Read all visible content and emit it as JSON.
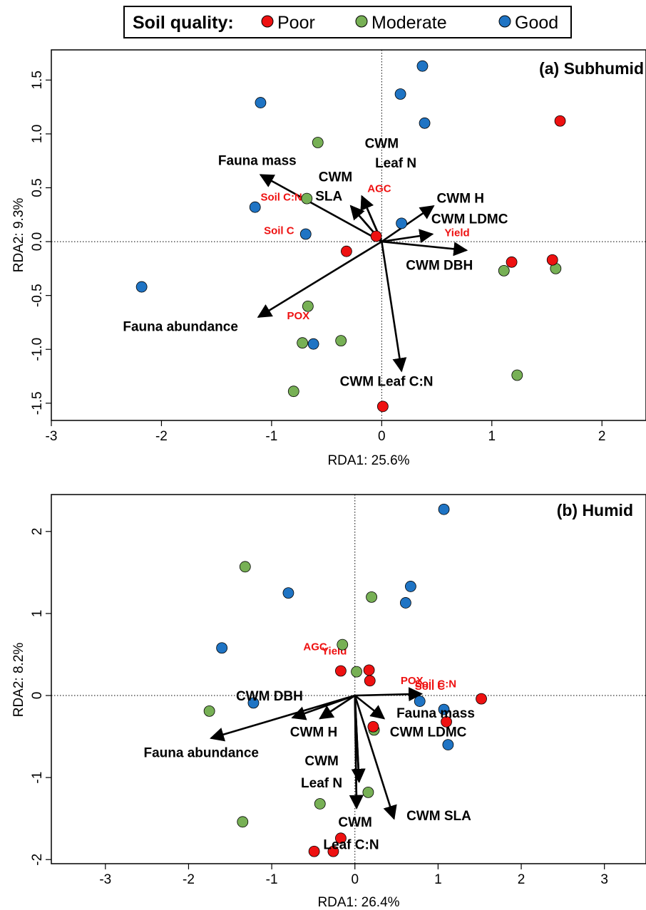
{
  "legend": {
    "title": "Soil quality:",
    "items": [
      {
        "label": "Poor",
        "color": "#ee1111"
      },
      {
        "label": "Moderate",
        "color": "#77b055"
      },
      {
        "label": "Good",
        "color": "#1f74c4"
      }
    ]
  },
  "colors": {
    "label_red": "#ee1111",
    "axis": "#000000"
  },
  "chart_data": [
    {
      "type": "scatter",
      "title": "(a) Subhumid",
      "xlabel": "RDA1: 25.6%",
      "ylabel": "RDA2: 9.3%",
      "xlim": [
        -3.0,
        2.4
      ],
      "ylim": [
        -1.66,
        1.78
      ],
      "xticks": [
        -3,
        -2,
        -1,
        0,
        1,
        2
      ],
      "yticks": [
        -1.5,
        -1.0,
        -0.5,
        0.0,
        0.5,
        1.0,
        1.5
      ],
      "yticklabels": [
        "-1.5",
        "-1.0",
        "-0.5",
        "0.0",
        "0.5",
        "1.0",
        "1.5"
      ],
      "points": [
        {
          "x": 0.37,
          "y": 1.63,
          "q": "Good"
        },
        {
          "x": 0.17,
          "y": 1.37,
          "q": "Good"
        },
        {
          "x": 0.39,
          "y": 1.1,
          "q": "Good"
        },
        {
          "x": -1.1,
          "y": 1.29,
          "q": "Good"
        },
        {
          "x": -1.15,
          "y": 0.32,
          "q": "Good"
        },
        {
          "x": -0.69,
          "y": 0.07,
          "q": "Good"
        },
        {
          "x": 0.18,
          "y": 0.17,
          "q": "Good"
        },
        {
          "x": -2.18,
          "y": -0.42,
          "q": "Good"
        },
        {
          "x": -0.62,
          "y": -0.95,
          "q": "Good"
        },
        {
          "x": -0.58,
          "y": 0.92,
          "q": "Moderate"
        },
        {
          "x": -0.68,
          "y": 0.4,
          "q": "Moderate"
        },
        {
          "x": -0.67,
          "y": -0.6,
          "q": "Moderate"
        },
        {
          "x": -0.72,
          "y": -0.94,
          "q": "Moderate"
        },
        {
          "x": -0.37,
          "y": -0.92,
          "q": "Moderate"
        },
        {
          "x": -0.8,
          "y": -1.39,
          "q": "Moderate"
        },
        {
          "x": 1.11,
          "y": -0.27,
          "q": "Moderate"
        },
        {
          "x": 1.58,
          "y": -0.25,
          "q": "Moderate"
        },
        {
          "x": 1.23,
          "y": -1.24,
          "q": "Moderate"
        },
        {
          "x": 1.62,
          "y": 1.12,
          "q": "Poor"
        },
        {
          "x": -0.05,
          "y": 0.05,
          "q": "Poor"
        },
        {
          "x": -0.32,
          "y": -0.09,
          "q": "Poor"
        },
        {
          "x": 1.18,
          "y": -0.19,
          "q": "Poor"
        },
        {
          "x": 1.55,
          "y": -0.17,
          "q": "Poor"
        },
        {
          "x": 0.01,
          "y": -1.53,
          "q": "Poor"
        }
      ],
      "arrows": [
        {
          "label": "Fauna mass",
          "x": -1.1,
          "y": 0.62,
          "lx": -1.13,
          "ly": 0.71,
          "anchor": "middle"
        },
        {
          "label": "CWM",
          "x": -0.28,
          "y": 0.33,
          "lx": -0.42,
          "ly": 0.56,
          "anchor": "middle"
        },
        {
          "label": "SLA",
          "x": -0.28,
          "y": 0.33,
          "lx": -0.48,
          "ly": 0.38,
          "anchor": "middle"
        },
        {
          "label": "CWM",
          "x": -0.18,
          "y": 0.42,
          "lx": 0.0,
          "ly": 0.87,
          "anchor": "middle"
        },
        {
          "label": "Leaf N",
          "x": -0.18,
          "y": 0.42,
          "lx": -0.06,
          "ly": 0.69,
          "anchor": "start"
        },
        {
          "label": "CWM H",
          "x": 0.47,
          "y": 0.33,
          "lx": 0.5,
          "ly": 0.36,
          "anchor": "start"
        },
        {
          "label": "CWM LDMC",
          "x": 0.46,
          "y": 0.07,
          "lx": 0.45,
          "ly": 0.17,
          "anchor": "start"
        },
        {
          "label": "CWM DBH",
          "x": 0.77,
          "y": -0.08,
          "lx": 0.22,
          "ly": -0.26,
          "anchor": "start"
        },
        {
          "label": "Fauna abundance",
          "x": -1.12,
          "y": -0.7,
          "lx": -2.35,
          "ly": -0.83,
          "anchor": "start"
        },
        {
          "label": "CWM Leaf C:N",
          "x": 0.18,
          "y": -1.2,
          "lx": -0.38,
          "ly": -1.34,
          "anchor": "start"
        }
      ],
      "env": [
        {
          "label": "Soil C:N",
          "lx": -1.1,
          "ly": 0.38
        },
        {
          "label": "Soil C",
          "lx": -1.07,
          "ly": 0.07
        },
        {
          "label": "AGC",
          "lx": -0.13,
          "ly": 0.46
        },
        {
          "label": "Yield",
          "lx": 0.57,
          "ly": 0.05
        },
        {
          "label": "POX",
          "lx": -0.86,
          "ly": -0.72
        }
      ]
    },
    {
      "type": "scatter",
      "title": "(b) Humid",
      "xlabel": "RDA1: 26.4%",
      "ylabel": "RDA2: 8.2%",
      "xlim": [
        -3.65,
        3.5
      ],
      "ylim": [
        -2.05,
        2.45
      ],
      "xticks": [
        -3,
        -2,
        -1,
        0,
        1,
        2,
        3
      ],
      "yticks": [
        -2,
        -1,
        0,
        1,
        2
      ],
      "yticklabels": [
        "-2",
        "-1",
        "0",
        "1",
        "2"
      ],
      "points": [
        {
          "x": 1.07,
          "y": 2.27,
          "q": "Good"
        },
        {
          "x": 0.67,
          "y": 1.33,
          "q": "Good"
        },
        {
          "x": 0.61,
          "y": 1.13,
          "q": "Good"
        },
        {
          "x": -0.8,
          "y": 1.25,
          "q": "Good"
        },
        {
          "x": -1.6,
          "y": 0.58,
          "q": "Good"
        },
        {
          "x": -1.22,
          "y": -0.09,
          "q": "Good"
        },
        {
          "x": 0.78,
          "y": -0.07,
          "q": "Good"
        },
        {
          "x": 1.07,
          "y": -0.17,
          "q": "Good"
        },
        {
          "x": 1.12,
          "y": -0.6,
          "q": "Good"
        },
        {
          "x": -1.32,
          "y": 1.57,
          "q": "Moderate"
        },
        {
          "x": 0.2,
          "y": 1.2,
          "q": "Moderate"
        },
        {
          "x": -0.15,
          "y": 0.62,
          "q": "Moderate"
        },
        {
          "x": 0.02,
          "y": 0.29,
          "q": "Moderate"
        },
        {
          "x": -1.75,
          "y": -0.19,
          "q": "Moderate"
        },
        {
          "x": 0.23,
          "y": -0.42,
          "q": "Moderate"
        },
        {
          "x": 0.16,
          "y": -1.18,
          "q": "Moderate"
        },
        {
          "x": -0.42,
          "y": -1.32,
          "q": "Moderate"
        },
        {
          "x": -1.35,
          "y": -1.54,
          "q": "Moderate"
        },
        {
          "x": -0.17,
          "y": 0.3,
          "q": "Poor"
        },
        {
          "x": 0.17,
          "y": 0.31,
          "q": "Poor"
        },
        {
          "x": 0.18,
          "y": 0.18,
          "q": "Poor"
        },
        {
          "x": 1.52,
          "y": -0.04,
          "q": "Poor"
        },
        {
          "x": 1.1,
          "y": -0.32,
          "q": "Poor"
        },
        {
          "x": 0.22,
          "y": -0.38,
          "q": "Poor"
        },
        {
          "x": -0.17,
          "y": -1.74,
          "q": "Poor"
        },
        {
          "x": -0.49,
          "y": -1.9,
          "q": "Poor"
        },
        {
          "x": -0.26,
          "y": -1.9,
          "q": "Poor"
        }
      ],
      "arrows": [
        {
          "label": "CWM DBH",
          "x": -0.75,
          "y": -0.27,
          "lx": -1.43,
          "ly": -0.06,
          "anchor": "start"
        },
        {
          "label": "CWM H",
          "x": -0.42,
          "y": -0.28,
          "lx": -0.78,
          "ly": -0.5,
          "anchor": "start"
        },
        {
          "label": "Fauna abundance",
          "x": -1.73,
          "y": -0.52,
          "lx": -2.54,
          "ly": -0.75,
          "anchor": "start"
        },
        {
          "label": "Fauna mass",
          "x": 0.8,
          "y": 0.02,
          "lx": 0.5,
          "ly": -0.27,
          "anchor": "start"
        },
        {
          "label": "CWM LDMC",
          "x": 0.35,
          "y": -0.28,
          "lx": 0.42,
          "ly": -0.5,
          "anchor": "start"
        },
        {
          "label": "CWM",
          "x": 0.05,
          "y": -1.05,
          "lx": -0.4,
          "ly": -0.85,
          "anchor": "middle"
        },
        {
          "label": "Leaf N",
          "x": 0.05,
          "y": -1.05,
          "lx": -0.4,
          "ly": -1.12,
          "anchor": "middle"
        },
        {
          "label": "CWM SLA",
          "x": 0.47,
          "y": -1.5,
          "lx": 0.62,
          "ly": -1.52,
          "anchor": "start"
        },
        {
          "label": "CWM",
          "x": 0.02,
          "y": -1.37,
          "lx": -0.2,
          "ly": -1.6,
          "anchor": "start"
        },
        {
          "label": "Leaf C:N",
          "x": 0.02,
          "y": -1.37,
          "lx": -0.38,
          "ly": -1.87,
          "anchor": "start"
        }
      ],
      "env": [
        {
          "label": "AGC",
          "lx": -0.62,
          "ly": 0.55
        },
        {
          "label": "Yield",
          "lx": -0.4,
          "ly": 0.5
        },
        {
          "label": "POX",
          "lx": 0.55,
          "ly": 0.14
        },
        {
          "label": "Soil C:N",
          "lx": 0.72,
          "ly": 0.1
        },
        {
          "label": "Soil C",
          "lx": 0.72,
          "ly": 0.07
        }
      ]
    }
  ]
}
